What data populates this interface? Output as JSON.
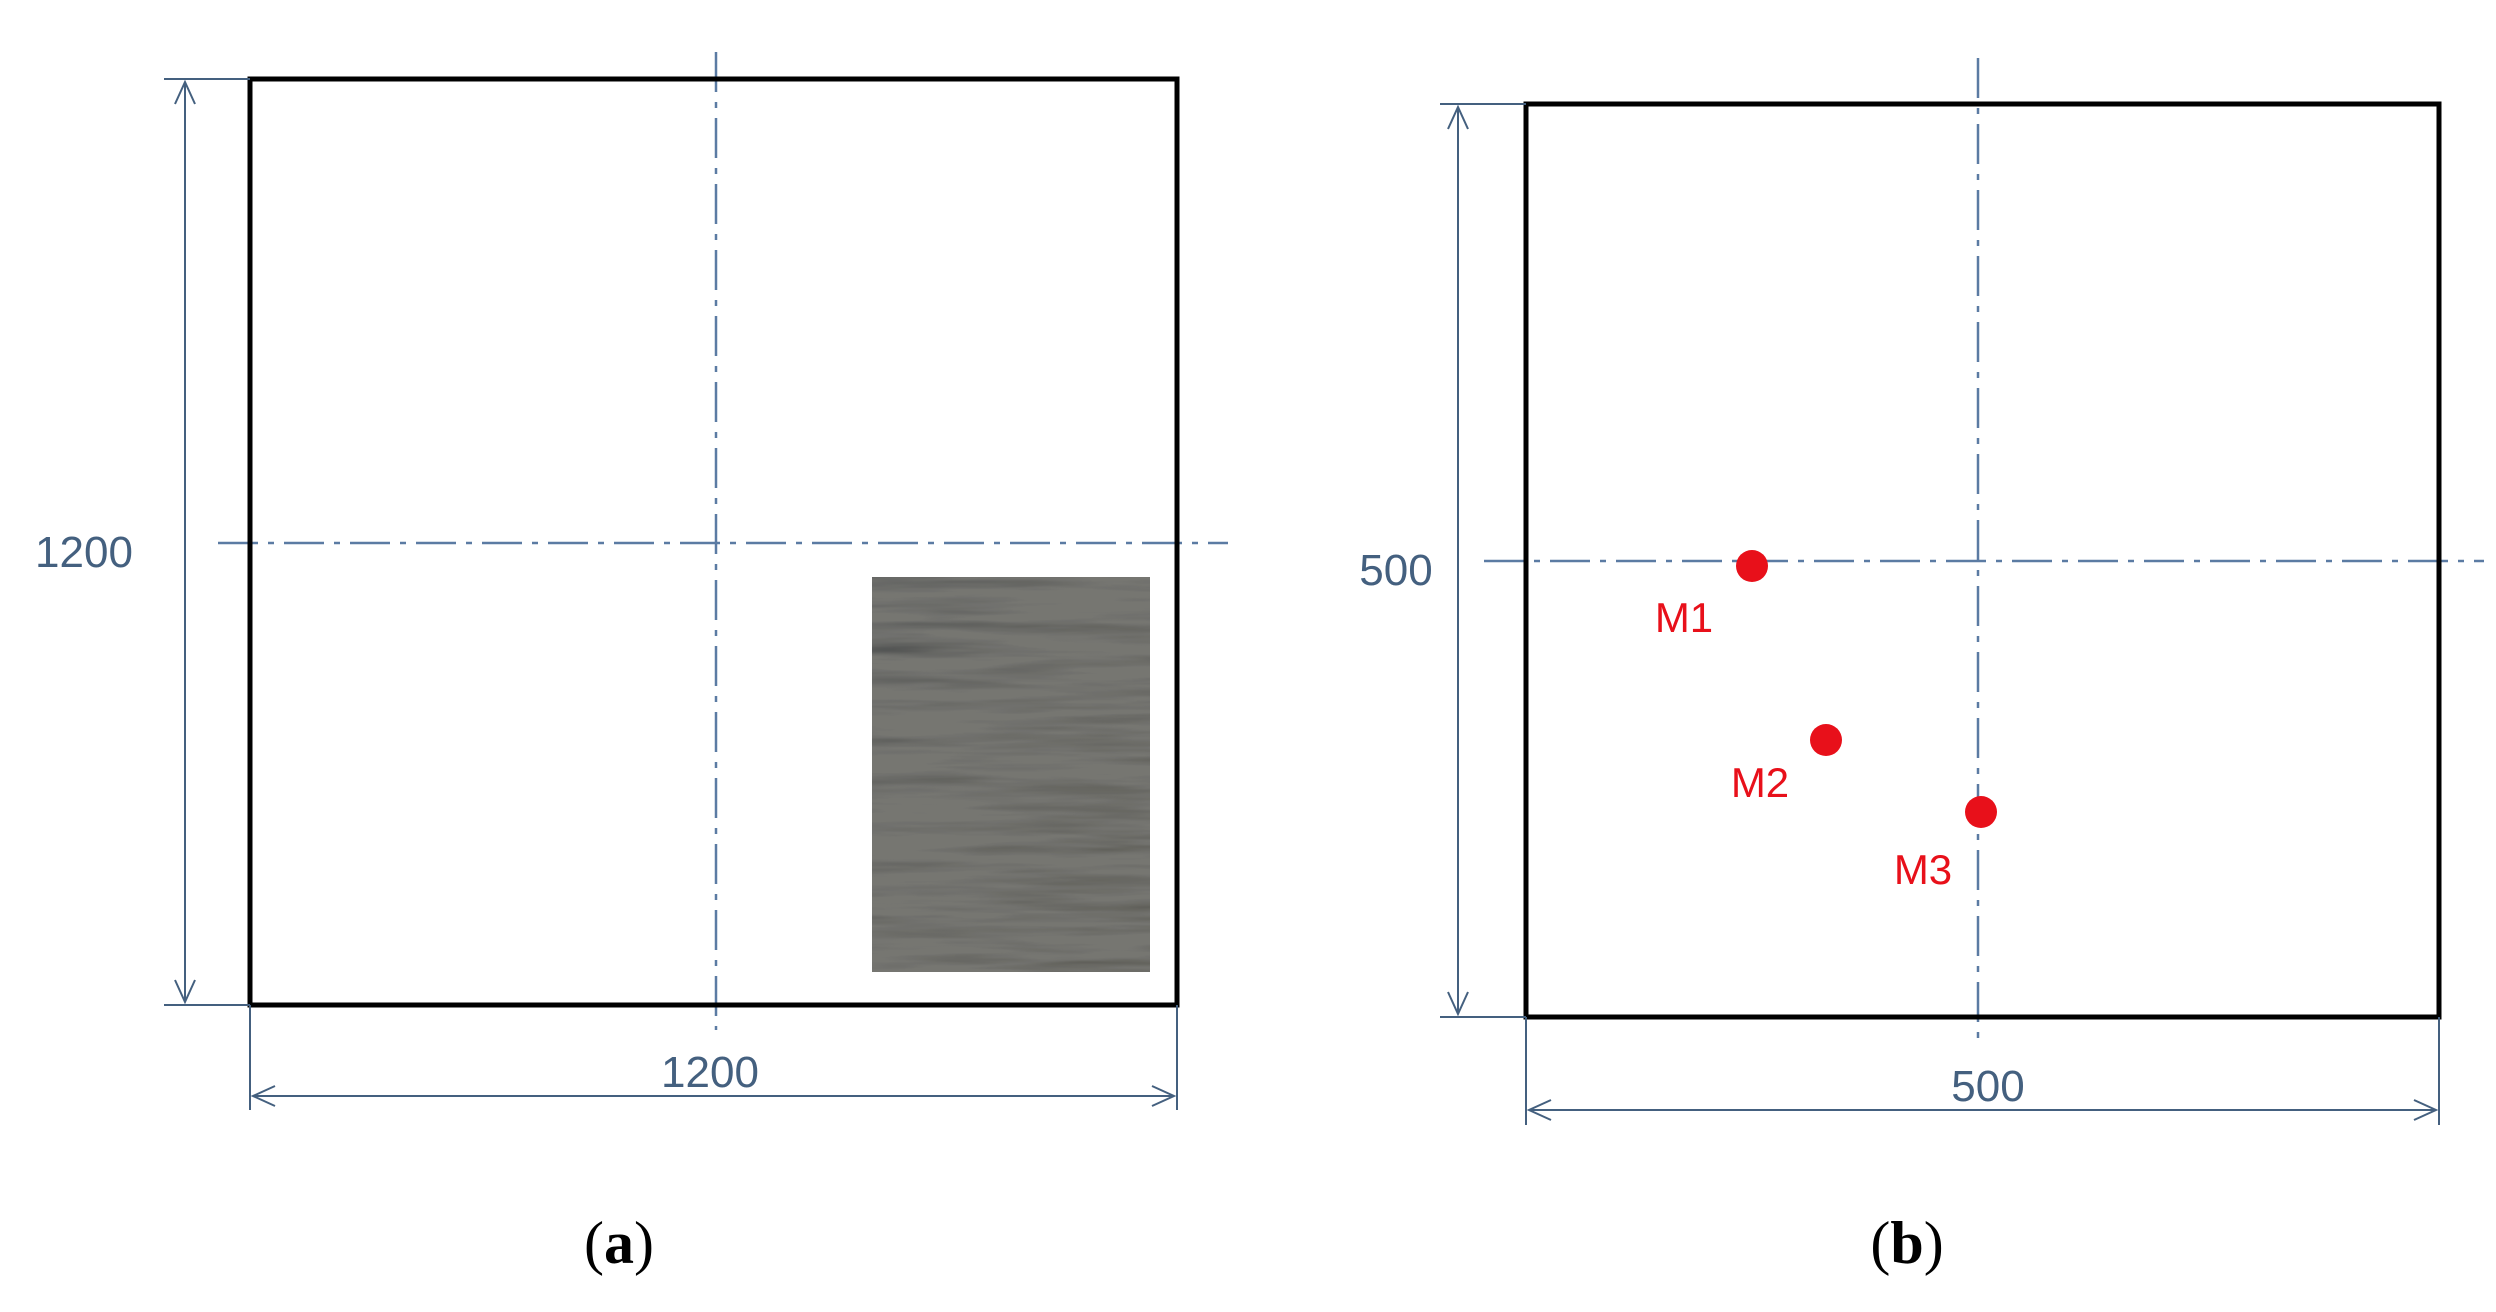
{
  "colors": {
    "outline": "#000000",
    "dimension": "#44607f",
    "centerline": "#5b7ba3",
    "measurement_point": "#e8101a",
    "sample_texture_dark": "#2b2b2b"
  },
  "panels": [
    {
      "id": "a",
      "caption": {
        "open": "(",
        "letter": "a",
        "close": ")"
      },
      "dimension_vertical": "1200",
      "dimension_horizontal": "1200",
      "icons": [
        "sample-photo"
      ]
    },
    {
      "id": "b",
      "caption": {
        "open": "(",
        "letter": "b",
        "close": ")"
      },
      "dimension_vertical": "500",
      "dimension_horizontal": "500",
      "points": [
        {
          "label": "M1"
        },
        {
          "label": "M2"
        },
        {
          "label": "M3"
        }
      ]
    }
  ]
}
